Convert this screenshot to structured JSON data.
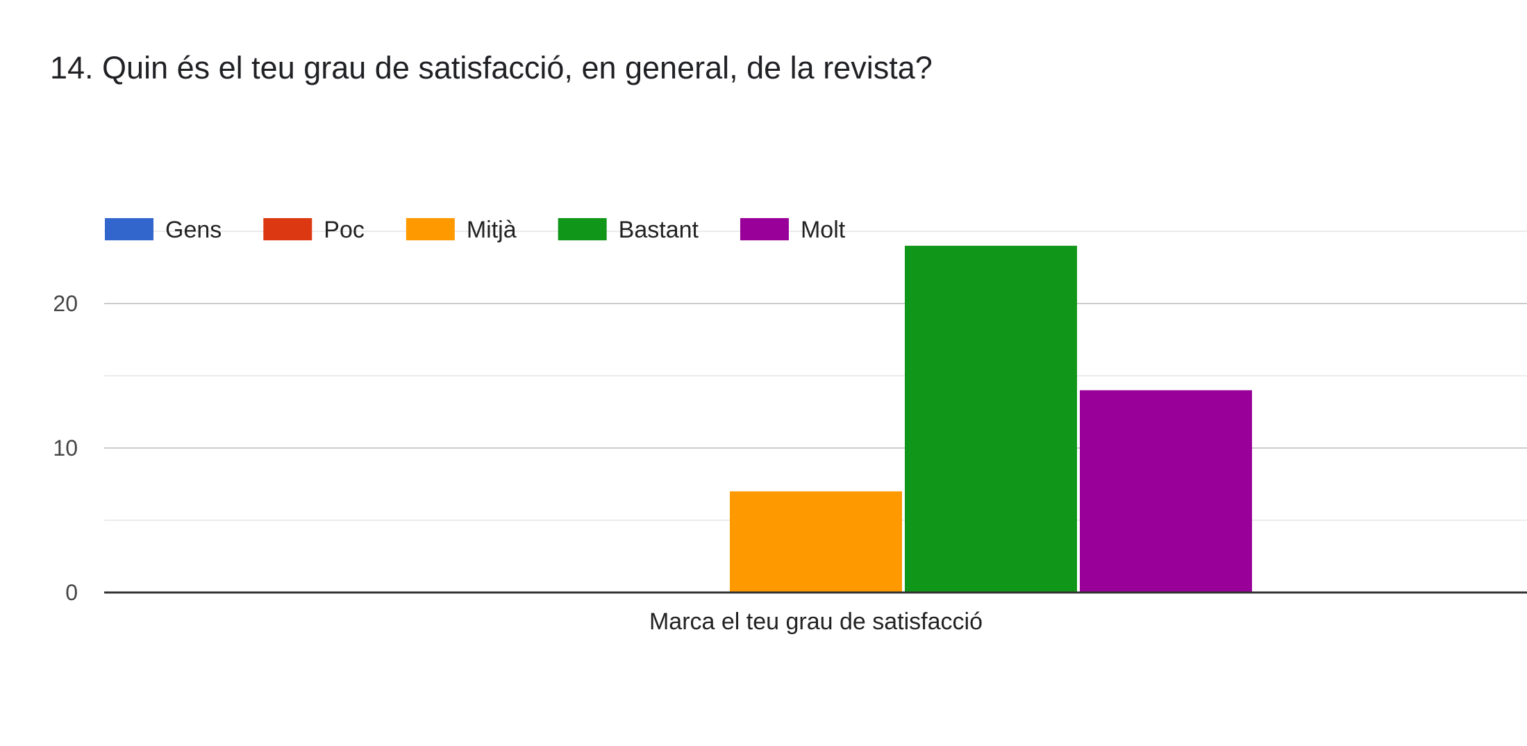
{
  "question": {
    "title": "14. Quin és el teu grau de satisfacció, en general, de la revista?"
  },
  "chart_data": {
    "type": "bar",
    "title": "14. Quin és el teu grau de satisfacció, en general, de la revista?",
    "categories": [
      "Marca el teu grau de satisfacció"
    ],
    "series": [
      {
        "name": "Gens",
        "color": "#3366cc",
        "values": [
          0
        ]
      },
      {
        "name": "Poc",
        "color": "#dc3912",
        "values": [
          0
        ]
      },
      {
        "name": "Mitjà",
        "color": "#ff9900",
        "values": [
          7
        ]
      },
      {
        "name": "Bastant",
        "color": "#109618",
        "values": [
          24
        ]
      },
      {
        "name": "Molt",
        "color": "#990099",
        "values": [
          14
        ]
      }
    ],
    "xlabel": "",
    "ylabel": "",
    "ylim": [
      0,
      25
    ],
    "yticks": [
      0,
      10,
      20
    ],
    "minor_gridlines": [
      5,
      15,
      25
    ],
    "legend_position": "top-left",
    "grid": true
  }
}
